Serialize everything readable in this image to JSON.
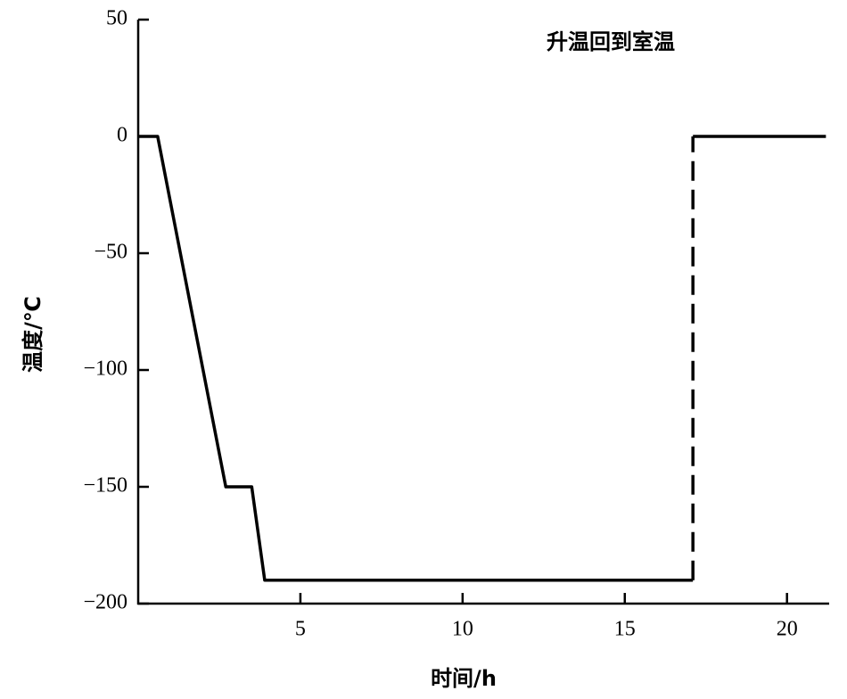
{
  "chart_data": {
    "type": "line",
    "annotation": "升温回到室温",
    "x_label": "时间/h",
    "y_label": "温度/℃",
    "xlim": [
      0,
      21.3
    ],
    "xticks": [
      5,
      10,
      15,
      20
    ],
    "ylim": [
      -200,
      50
    ],
    "yticks": [
      50,
      0,
      {
        "value": -50,
        "label": "−50"
      },
      {
        "value": -100,
        "label": "−100"
      },
      {
        "value": -150,
        "label": "−150"
      },
      {
        "value": -200,
        "label": "−200"
      }
    ],
    "series": [
      {
        "color": "#000000",
        "dashed": false,
        "x": [
          0,
          0.6,
          2.7,
          3.5,
          3.9,
          17.1
        ],
        "values": [
          0,
          0,
          -150,
          -150,
          -190,
          -190
        ]
      },
      {
        "color": "#000000",
        "dashed": true,
        "x": [
          17.1,
          17.1
        ],
        "values": [
          -190,
          0
        ]
      },
      {
        "color": "#000000",
        "dashed": false,
        "x": [
          17.1,
          21.2
        ],
        "values": [
          0,
          0
        ]
      }
    ]
  }
}
